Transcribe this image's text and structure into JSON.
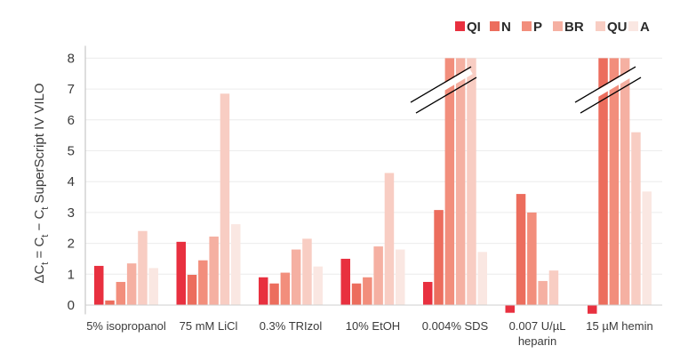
{
  "chart_data": {
    "type": "bar",
    "ylabel_parts": [
      "ΔC",
      "t",
      " = C",
      "t",
      " − C",
      "t",
      " SuperScript IV  VILO"
    ],
    "ylim": [
      -0.3,
      8.4
    ],
    "yticks": [
      0,
      1,
      2,
      3,
      4,
      5,
      6,
      7,
      8
    ],
    "grid": true,
    "legend_position": "top-right",
    "categories": [
      [
        "5% isopropanol"
      ],
      [
        "75 mM LiCl"
      ],
      [
        "0.3% TRIzol"
      ],
      [
        "10% EtOH"
      ],
      [
        "0.004% SDS"
      ],
      [
        "0.007 U/µL",
        "heparin"
      ],
      [
        "15 µM hemin"
      ]
    ],
    "series": [
      {
        "name": "QI",
        "color": "#e8303f",
        "values": [
          1.27,
          2.05,
          0.9,
          1.5,
          0.75,
          -0.25,
          -0.28
        ]
      },
      {
        "name": "N",
        "color": "#ec6d5d",
        "values": [
          0.15,
          0.98,
          0.7,
          0.7,
          3.08,
          3.6,
          8.0
        ]
      },
      {
        "name": "P",
        "color": "#f28e7c",
        "values": [
          0.75,
          1.45,
          1.05,
          0.9,
          8.0,
          3.0,
          8.0
        ]
      },
      {
        "name": "BR",
        "color": "#f5b0a2",
        "values": [
          1.35,
          2.22,
          1.8,
          1.9,
          8.0,
          0.78,
          8.0
        ]
      },
      {
        "name": "QU",
        "color": "#f8cdc3",
        "values": [
          2.4,
          6.85,
          2.15,
          4.28,
          8.0,
          1.12,
          5.6
        ]
      },
      {
        "name": "A",
        "color": "#fae7e2",
        "values": [
          1.2,
          2.62,
          1.25,
          1.8,
          1.72,
          0.0,
          3.68
        ]
      }
    ],
    "axis_breaks_in_categories": [
      4,
      6
    ]
  }
}
